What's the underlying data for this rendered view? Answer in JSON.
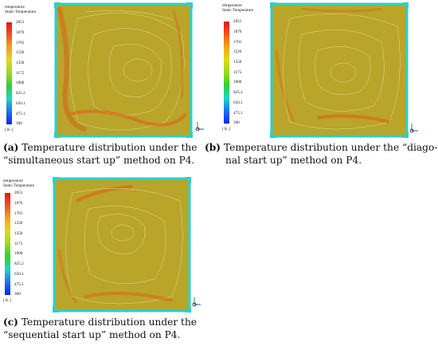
{
  "legend": {
    "title_line1": "temperature",
    "title_line2": "Static Temperature",
    "ticks": [
      "2051",
      "1876",
      "1701",
      "1526",
      "1350",
      "1175",
      "1000",
      "825.2",
      "650.1",
      "475.1",
      "300"
    ],
    "unit": "[ K ]"
  },
  "panels": [
    {
      "label": "(a)",
      "caption_line1": "Temperature distribution under the",
      "caption_line2": "“simultaneous start up” method on P4."
    },
    {
      "label": "(b)",
      "caption_line1": "Temperature distribution under the “diago-",
      "caption_line2": "nal start up” method on P4."
    },
    {
      "label": "(c)",
      "caption_line1": "Temperature distribution under the",
      "caption_line2": "“sequential start up” method on P4."
    }
  ],
  "colors": {
    "field": "#b8a52a",
    "hot": "#e35a1a",
    "edge": "#2ad0d0",
    "contour": "#e8dc9a"
  }
}
